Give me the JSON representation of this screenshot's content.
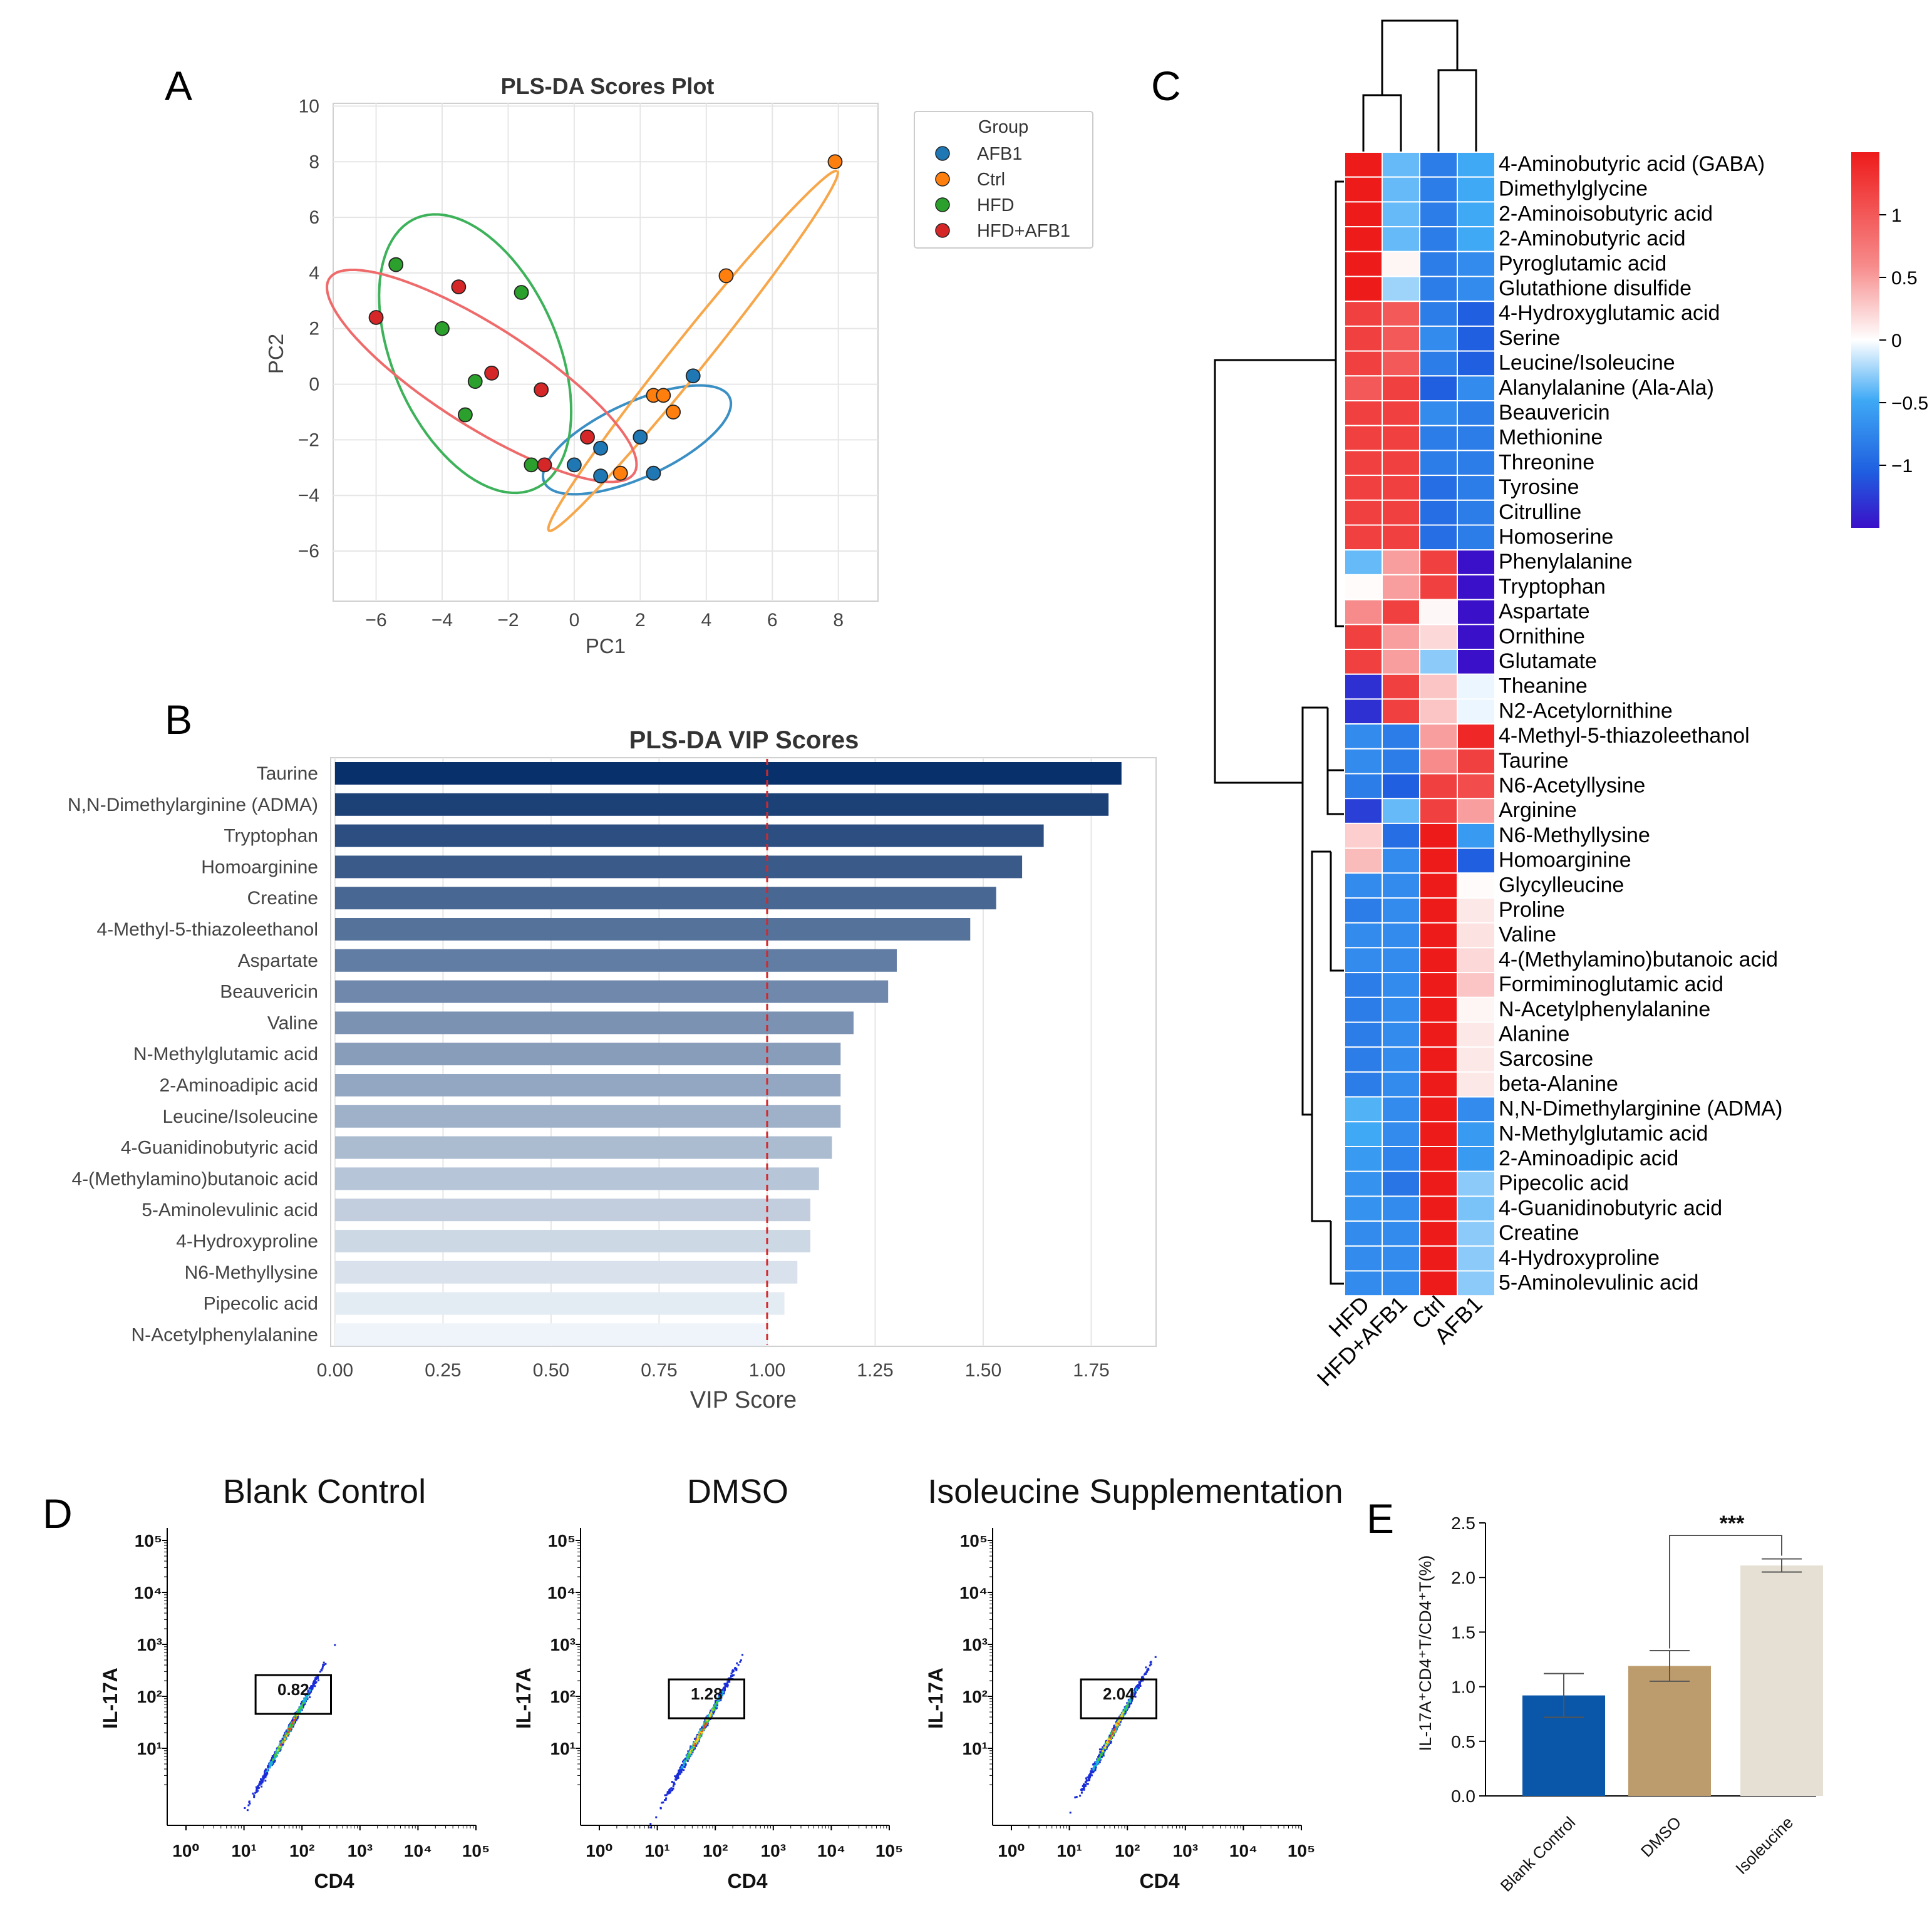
{
  "panel_labels": {
    "a": "A",
    "b": "B",
    "c": "C",
    "d": "D",
    "e": "E"
  },
  "colors": {
    "afb1": "#1f77b4",
    "ctrl": "#ff7f0e",
    "hfd": "#2ca02c",
    "hfdafb1": "#d62728",
    "ell_afb1": "#3a8fc4",
    "ell_ctrl": "#f7a64a",
    "ell_hfd": "#3db25a",
    "ell_hfdafb1": "#ef6a6a",
    "vip_dark": "#08306b",
    "vip_light": "#eef4fa",
    "threshold": "#d62728",
    "e_blank": "#0a56a8",
    "e_dmso": "#bc9c6d",
    "e_iso": "#e5e0d3"
  },
  "chart_data": [
    {
      "id": "A",
      "type": "scatter",
      "title": "PLS-DA Scores Plot",
      "xlabel": "PC1",
      "ylabel": "PC2",
      "xlim": [
        -7.3,
        9.2
      ],
      "ylim": [
        -7.8,
        10.1
      ],
      "xticks": [
        -6,
        -4,
        -2,
        0,
        2,
        4,
        6,
        8
      ],
      "yticks": [
        -6,
        -4,
        -2,
        0,
        2,
        4,
        6,
        8,
        10
      ],
      "xtick_labels": [
        "−6",
        "−4",
        "−2",
        "0",
        "2",
        "4",
        "6",
        "8"
      ],
      "ytick_labels": [
        "−6",
        "−4",
        "−2",
        "0",
        "2",
        "4",
        "6",
        "8",
        "10"
      ],
      "legend": {
        "title": "Group",
        "position": "top-right",
        "entries": [
          "AFB1",
          "Ctrl",
          "HFD",
          "HFD+AFB1"
        ]
      },
      "series": [
        {
          "name": "AFB1",
          "color_key": "afb1",
          "x": [
            0.0,
            0.8,
            0.8,
            2.0,
            2.4,
            3.6
          ],
          "y": [
            -2.9,
            -2.3,
            -3.3,
            -1.9,
            -3.2,
            0.3
          ]
        },
        {
          "name": "Ctrl",
          "color_key": "ctrl",
          "x": [
            1.4,
            2.4,
            2.7,
            3.0,
            4.6,
            7.9
          ],
          "y": [
            -3.2,
            -0.4,
            -0.4,
            -1.0,
            3.9,
            8.0
          ]
        },
        {
          "name": "HFD",
          "color_key": "hfd",
          "x": [
            -5.4,
            -4.0,
            -3.0,
            -3.3,
            -1.6,
            -1.3
          ],
          "y": [
            4.3,
            2.0,
            0.1,
            -1.1,
            3.3,
            -2.9
          ]
        },
        {
          "name": "HFD+AFB1",
          "color_key": "hfdafb1",
          "x": [
            -6.0,
            -3.5,
            -2.5,
            -1.0,
            -0.9,
            0.4
          ],
          "y": [
            2.4,
            3.5,
            0.4,
            -0.2,
            -2.9,
            -1.9
          ]
        }
      ],
      "ellipses": [
        {
          "name": "AFB1",
          "color_key": "ell_afb1",
          "cx": 1.9,
          "cy": -2.0,
          "rx": 3.2,
          "ry": 1.3,
          "angle_deg": 30
        },
        {
          "name": "Ctrl",
          "color_key": "ell_ctrl",
          "cx": 3.6,
          "cy": 1.2,
          "rx": 7.8,
          "ry": 0.55,
          "angle_deg": 56
        },
        {
          "name": "HFD",
          "color_key": "ell_hfd",
          "cx": -3.0,
          "cy": 1.1,
          "rx": 5.2,
          "ry": 2.55,
          "angle_deg": -72
        },
        {
          "name": "HFD+AFB1",
          "color_key": "ell_hfdafb1",
          "cx": -2.8,
          "cy": 0.3,
          "rx": 5.8,
          "ry": 1.7,
          "angle_deg": -38
        }
      ]
    },
    {
      "id": "B",
      "type": "bar",
      "orientation": "horizontal",
      "title": "PLS-DA VIP Scores",
      "xlabel": "VIP Score",
      "xlim": [
        -0.01,
        1.9
      ],
      "xticks": [
        0.0,
        0.25,
        0.5,
        0.75,
        1.0,
        1.25,
        1.5,
        1.75
      ],
      "xtick_labels": [
        "0.00",
        "0.25",
        "0.50",
        "0.75",
        "1.00",
        "1.25",
        "1.50",
        "1.75"
      ],
      "threshold": 1.0,
      "categories": [
        "Taurine",
        "N,N-Dimethylarginine (ADMA)",
        "Tryptophan",
        "Homoarginine",
        "Creatine",
        "4-Methyl-5-thiazoleethanol",
        "Aspartate",
        "Beauvericin",
        "Valine",
        "N-Methylglutamic acid",
        "2-Aminoadipic acid",
        "Leucine/Isoleucine",
        "4-Guanidinobutyric acid",
        "4-(Methylamino)butanoic acid",
        "5-Aminolevulinic acid",
        "4-Hydroxyproline",
        "N6-Methyllysine",
        "Pipecolic acid",
        "N-Acetylphenylalanine"
      ],
      "values": [
        1.82,
        1.79,
        1.64,
        1.59,
        1.53,
        1.47,
        1.3,
        1.28,
        1.2,
        1.17,
        1.17,
        1.17,
        1.15,
        1.12,
        1.1,
        1.1,
        1.07,
        1.04,
        1.0
      ]
    },
    {
      "id": "C",
      "type": "heatmap",
      "columns": [
        "HFD",
        "HFD+AFB1",
        "Ctrl",
        "AFB1"
      ],
      "colorbar": {
        "range": [
          -1.5,
          1.5
        ],
        "ticks": [
          1,
          0.5,
          0,
          -0.5,
          -1
        ],
        "tick_labels": [
          "1",
          "0.5",
          "0",
          "−0.5",
          "−1"
        ]
      },
      "rows": [
        "4-Aminobutyric acid (GABA)",
        "Dimethylglycine",
        "2-Aminoisobutyric acid",
        "2-Aminobutyric acid",
        "Pyroglutamic acid",
        "Glutathione disulfide",
        "4-Hydroxyglutamic acid",
        "Serine",
        "Leucine/Isoleucine",
        "Alanylalanine (Ala-Ala)",
        "Beauvericin",
        "Methionine",
        "Threonine",
        "Tyrosine",
        "Citrulline",
        "Homoserine",
        "Phenylalanine",
        "Tryptophan",
        "Aspartate",
        "Ornithine",
        "Glutamate",
        "Theanine",
        "N2-Acetylornithine",
        "4-Methyl-5-thiazoleethanol",
        "Taurine",
        "N6-Acetyllysine",
        "Arginine",
        "N6-Methyllysine",
        "Homoarginine",
        "Glycylleucine",
        "Proline",
        "Valine",
        "4-(Methylamino)butanoic acid",
        "Formiminoglutamic acid",
        "N-Acetylphenylalanine",
        "Alanine",
        "Sarcosine",
        "beta-Alanine",
        "N,N-Dimethylarginine (ADMA)",
        "N-Methylglutamic acid",
        "2-Aminoadipic acid",
        "Pipecolic acid",
        "4-Guanidinobutyric acid",
        "Creatine",
        "4-Hydroxyproline",
        "5-Aminolevulinic acid"
      ],
      "values": [
        [
          1.5,
          -0.4,
          -0.8,
          -0.5
        ],
        [
          1.5,
          -0.4,
          -0.8,
          -0.5
        ],
        [
          1.5,
          -0.4,
          -0.8,
          -0.5
        ],
        [
          1.5,
          -0.4,
          -0.8,
          -0.5
        ],
        [
          1.5,
          0.05,
          -0.8,
          -0.7
        ],
        [
          1.5,
          -0.25,
          -0.8,
          -0.7
        ],
        [
          1.2,
          1.0,
          -0.8,
          -1.0
        ],
        [
          1.2,
          1.0,
          -0.7,
          -1.0
        ],
        [
          1.2,
          1.0,
          -0.8,
          -1.0
        ],
        [
          1.0,
          1.2,
          -1.0,
          -0.7
        ],
        [
          1.2,
          1.2,
          -0.7,
          -0.8
        ],
        [
          1.2,
          1.2,
          -0.8,
          -0.8
        ],
        [
          1.2,
          1.2,
          -0.8,
          -0.8
        ],
        [
          1.2,
          1.2,
          -0.9,
          -0.8
        ],
        [
          1.2,
          1.2,
          -0.9,
          -0.8
        ],
        [
          1.2,
          1.2,
          -0.9,
          -0.8
        ],
        [
          -0.4,
          0.5,
          1.2,
          -1.5
        ],
        [
          0.02,
          0.5,
          1.2,
          -1.5
        ],
        [
          0.6,
          1.2,
          0.04,
          -1.5
        ],
        [
          1.2,
          0.5,
          0.2,
          -1.5
        ],
        [
          1.2,
          0.5,
          -0.3,
          -1.5
        ],
        [
          -1.3,
          1.2,
          0.3,
          -0.05
        ],
        [
          -1.3,
          1.2,
          0.3,
          -0.05
        ],
        [
          -0.7,
          -0.8,
          0.5,
          1.4
        ],
        [
          -0.7,
          -0.8,
          0.6,
          1.2
        ],
        [
          -0.8,
          -1.0,
          1.2,
          1.1
        ],
        [
          -1.2,
          -0.4,
          1.2,
          0.5
        ],
        [
          0.25,
          -0.9,
          1.5,
          -0.6
        ],
        [
          0.35,
          -0.7,
          1.5,
          -1.0
        ],
        [
          -0.7,
          -0.7,
          1.5,
          0.02
        ],
        [
          -0.8,
          -0.7,
          1.5,
          0.12
        ],
        [
          -0.7,
          -0.7,
          1.5,
          0.15
        ],
        [
          -0.7,
          -0.7,
          1.5,
          0.2
        ],
        [
          -0.8,
          -0.7,
          1.5,
          0.3
        ],
        [
          -0.8,
          -0.7,
          1.5,
          0.05
        ],
        [
          -0.8,
          -0.7,
          1.5,
          0.12
        ],
        [
          -0.8,
          -0.7,
          1.5,
          0.12
        ],
        [
          -0.8,
          -0.7,
          1.5,
          0.12
        ],
        [
          -0.45,
          -0.7,
          1.5,
          -0.7
        ],
        [
          -0.5,
          -0.7,
          1.5,
          -0.6
        ],
        [
          -0.6,
          -0.75,
          1.5,
          -0.6
        ],
        [
          -0.65,
          -0.85,
          1.5,
          -0.3
        ],
        [
          -0.65,
          -0.7,
          1.5,
          -0.35
        ],
        [
          -0.7,
          -0.7,
          1.5,
          -0.3
        ],
        [
          -0.7,
          -0.7,
          1.5,
          -0.3
        ],
        [
          -0.7,
          -0.7,
          1.5,
          -0.3
        ]
      ]
    },
    {
      "id": "D",
      "type": "scatter",
      "subtype": "flow-cytometry",
      "xlabel": "CD4",
      "ylabel": "IL-17A",
      "log_decades": [
        0,
        1,
        2,
        3,
        4,
        5
      ],
      "plots": [
        {
          "title": "Blank Control",
          "gate_value": "0.82"
        },
        {
          "title": "DMSO",
          "gate_value": "1.28"
        },
        {
          "title": "Isoleucine Supplementation",
          "gate_value": "2.04"
        }
      ]
    },
    {
      "id": "E",
      "type": "bar",
      "ylabel": "IL-17A⁺CD4⁺T/CD4⁺T(%)",
      "ylim": [
        0,
        2.5
      ],
      "yticks": [
        0.0,
        0.5,
        1.0,
        1.5,
        2.0,
        2.5
      ],
      "ytick_labels": [
        "0.0",
        "0.5",
        "1.0",
        "1.5",
        "2.0",
        "2.5"
      ],
      "categories": [
        "Blank Control",
        "DMSO",
        "Isoleucine"
      ],
      "values": [
        0.92,
        1.19,
        2.11
      ],
      "errors": [
        0.2,
        0.14,
        0.06
      ],
      "significance": {
        "label": "***",
        "between": [
          "DMSO",
          "Isoleucine"
        ]
      }
    }
  ]
}
